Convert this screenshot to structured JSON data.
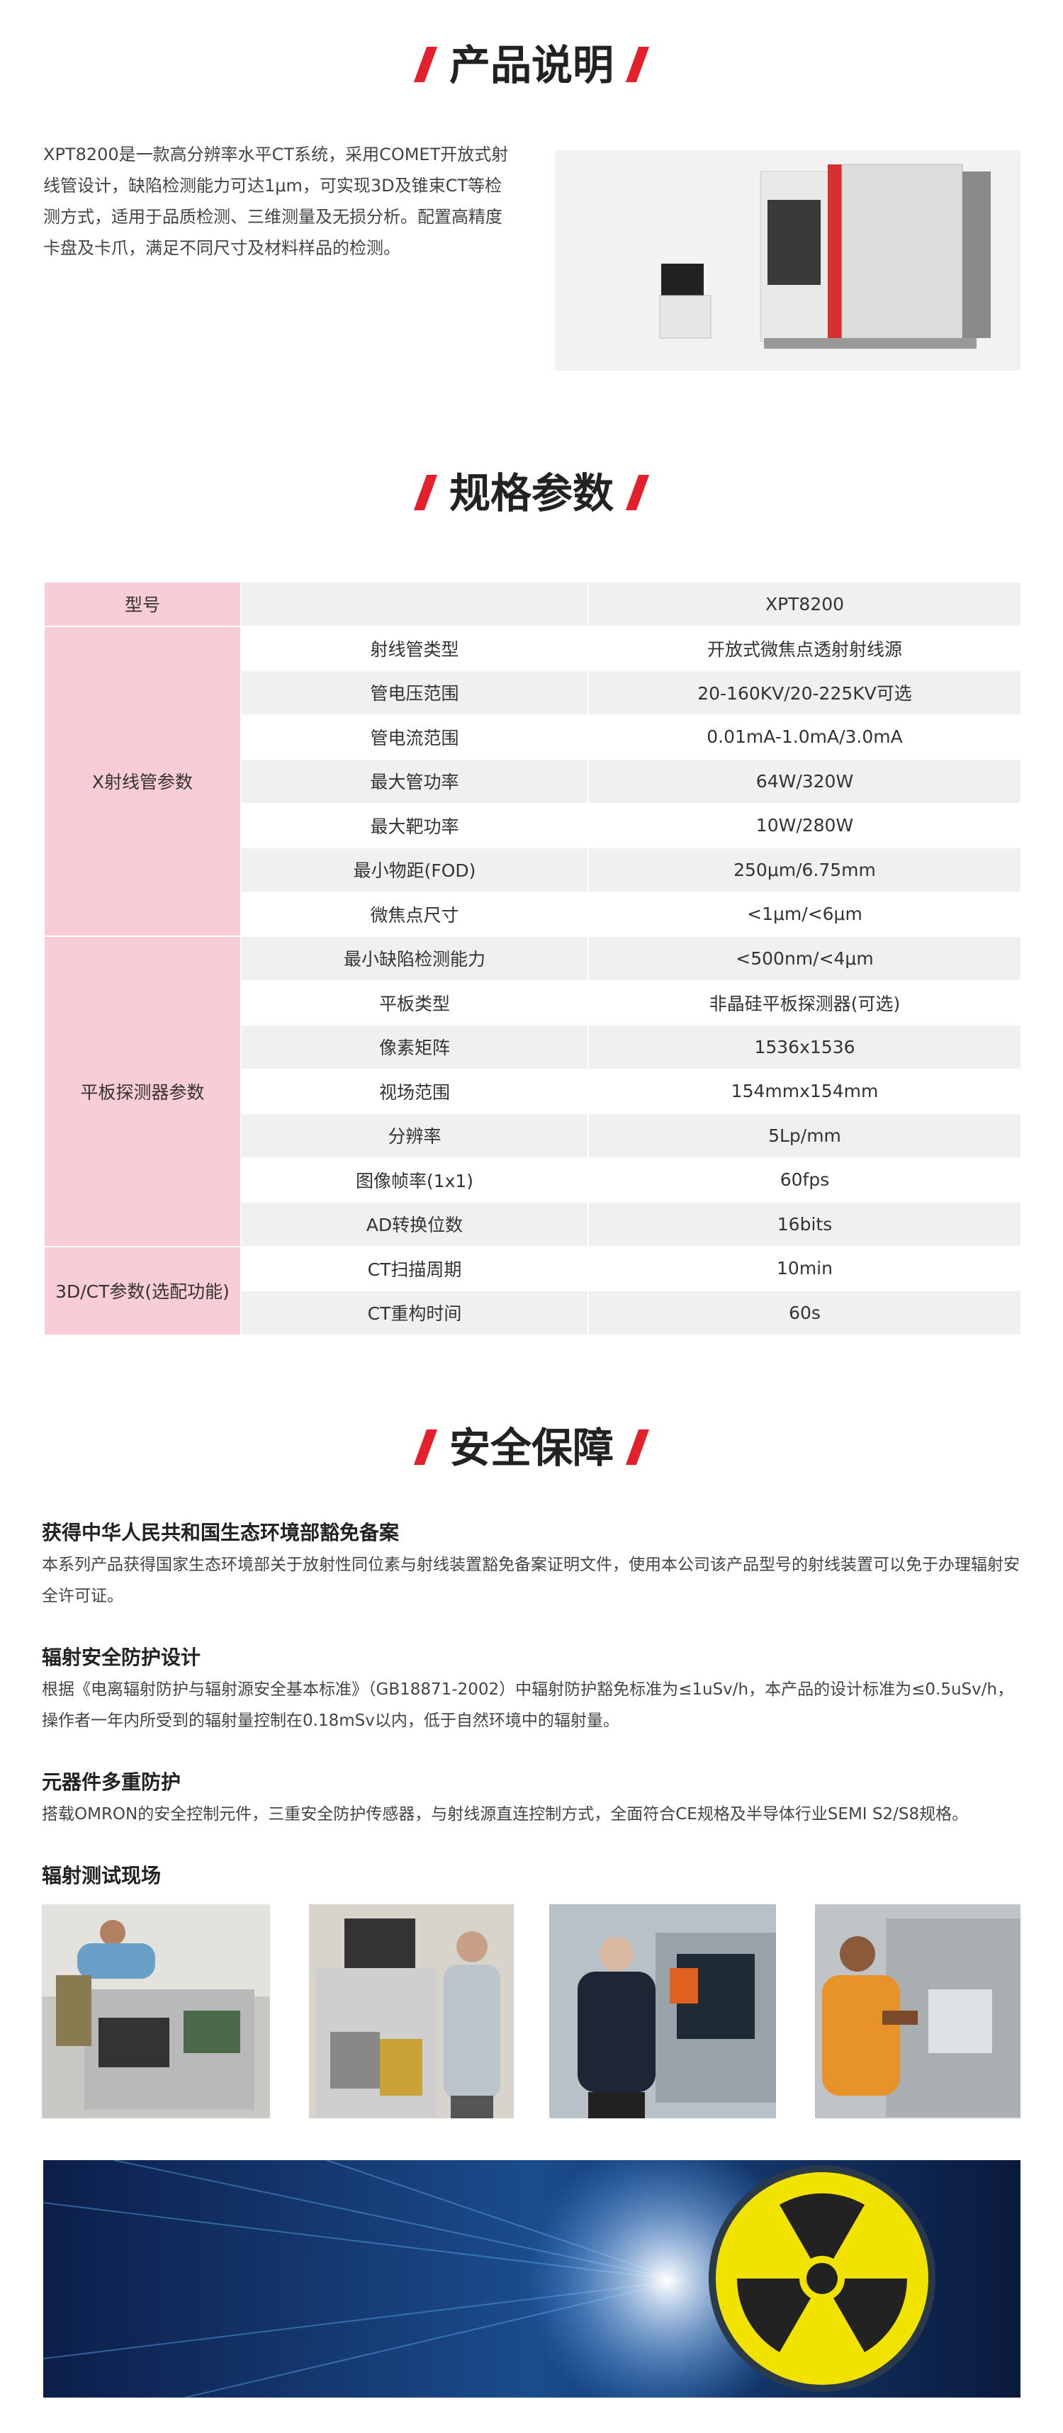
{
  "sections": {
    "intro_title": "产品说明",
    "spec_title": "规格参数",
    "safety_title": "安全保障"
  },
  "intro": {
    "text": "XPT8200是一款高分辨率水平CT系统，采用COMET开放式射线管设计，缺陷检测能力可达1μm，可实现3D及锥束CT等检测方式，适用于品质检测、三维测量及无损分析。配置高精度卡盘及卡爪，满足不同尺寸及材料样品的检测。"
  },
  "spec_table": {
    "model_label": "型号",
    "model_value": "XPT8200",
    "groups": [
      {
        "name": "X射线管参数",
        "rows": [
          [
            "射线管类型",
            "开放式微焦点透射射线源"
          ],
          [
            "管电压范围",
            "20-160KV/20-225KV可选"
          ],
          [
            "管电流范围",
            "0.01mA-1.0mA/3.0mA"
          ],
          [
            "最大管功率",
            "64W/320W"
          ],
          [
            "最大靶功率",
            "10W/280W"
          ],
          [
            "最小物距(FOD)",
            "250μm/6.75mm"
          ],
          [
            "微焦点尺寸",
            "<1μm/<6μm"
          ]
        ]
      },
      {
        "name": "平板探测器参数",
        "rows": [
          [
            "最小缺陷检测能力",
            "<500nm/<4μm"
          ],
          [
            "平板类型",
            "非晶硅平板探测器(可选)"
          ],
          [
            "像素矩阵",
            "1536x1536"
          ],
          [
            "视场范围",
            "154mmx154mm"
          ],
          [
            "分辨率",
            "5Lp/mm"
          ],
          [
            "图像帧率(1x1)",
            "60fps"
          ],
          [
            "AD转换位数",
            "16bits"
          ]
        ]
      },
      {
        "name": "3D/CT参数(选配功能)",
        "rows": [
          [
            "CT扫描周期",
            "10min"
          ],
          [
            "CT重构时间",
            "60s"
          ]
        ]
      }
    ]
  },
  "safety": {
    "items": [
      {
        "heading": "获得中华人民共和国生态环境部豁免备案",
        "text": "本系列产品获得国家生态环境部关于放射性同位素与射线装置豁免备案证明文件，使用本公司该产品型号的射线装置可以免于办理辐射安全许可证。"
      },
      {
        "heading": "辐射安全防护设计",
        "text": "根据《电离辐射防护与辐射源安全基本标准》（GB18871-2002）中辐射防护豁免标准为≤1uSv/h，本产品的设计标准为≤0.5uSv/h，操作者一年内所受到的辐射量控制在0.18mSv以内，低于自然环境中的辐射量。"
      },
      {
        "heading": "元器件多重防护",
        "text": "搭载OMRON的安全控制元件，三重安全防护传感器，与射线源直连控制方式，全面符合CE规格及半导体行业SEMI S2/S8规格。"
      }
    ],
    "gallery_title": "辐射测试现场"
  }
}
